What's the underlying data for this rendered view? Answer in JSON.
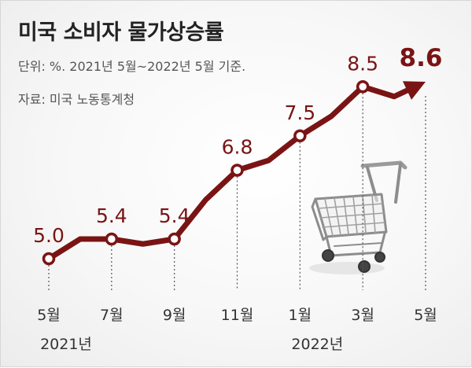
{
  "header": {
    "title": "미국 소비자 물가상승률",
    "unit_note": "단위: %. 2021년 5월~2022년 5월 기준.",
    "source_note": "자료: 미국 노동통계청"
  },
  "colors": {
    "line": "#7a1414",
    "marker_fill": "#ffffff",
    "guide": "#555555"
  },
  "icons": [
    "shopping-cart-icon"
  ],
  "chart_data": {
    "type": "line",
    "title": "미국 소비자 물가상승률",
    "xlabel": "",
    "ylabel": "",
    "ylim": [
      4.0,
      9.0
    ],
    "grid": false,
    "x": [
      "2021-05",
      "2021-06",
      "2021-07",
      "2021-08",
      "2021-09",
      "2021-10",
      "2021-11",
      "2021-12",
      "2022-01",
      "2022-02",
      "2022-03",
      "2022-04",
      "2022-05"
    ],
    "values": [
      5.0,
      5.4,
      5.4,
      5.3,
      5.4,
      6.2,
      6.8,
      7.0,
      7.5,
      7.9,
      8.5,
      8.3,
      8.6
    ],
    "labeled_points": [
      {
        "x": "2021-05",
        "label": "5.0"
      },
      {
        "x": "2021-07",
        "label": "5.4"
      },
      {
        "x": "2021-09",
        "label": "5.4"
      },
      {
        "x": "2021-11",
        "label": "6.8"
      },
      {
        "x": "2022-01",
        "label": "7.5"
      },
      {
        "x": "2022-03",
        "label": "8.5"
      },
      {
        "x": "2022-05",
        "label": "8.6"
      }
    ],
    "tick_labels": [
      {
        "x": "2021-05",
        "label": "5월",
        "sub": "2021년"
      },
      {
        "x": "2021-07",
        "label": "7월",
        "sub": ""
      },
      {
        "x": "2021-09",
        "label": "9월",
        "sub": ""
      },
      {
        "x": "2021-11",
        "label": "11월",
        "sub": ""
      },
      {
        "x": "2022-01",
        "label": "1월",
        "sub": "2022년"
      },
      {
        "x": "2022-03",
        "label": "3월",
        "sub": ""
      },
      {
        "x": "2022-05",
        "label": "5월",
        "sub": ""
      }
    ]
  }
}
